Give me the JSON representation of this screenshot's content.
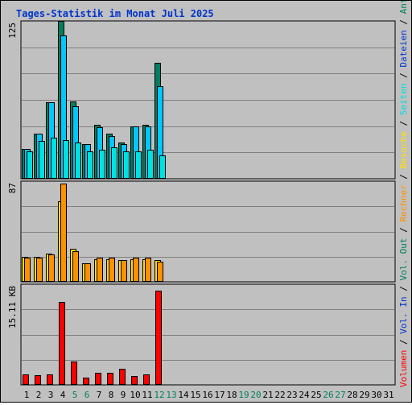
{
  "title": "Tages-Statistik im Monat Juli 2025",
  "colors": {
    "title": "#0033cc",
    "background": "#c0c0c0",
    "grid": "#808080",
    "anfragen": "#007f5f",
    "dateien": "#00c8ff",
    "seiten": "#00e0e0",
    "besuche": "#ffe000",
    "rechner": "#ff9000",
    "volumen": "#ff0000",
    "weekend": "#008060",
    "weekday": "#000000"
  },
  "legend": {
    "anfragen": "Anfragen",
    "dateien": "Dateien",
    "seiten": "Seiten",
    "besuche": "Besuche",
    "rechner": "Rechner",
    "vol_out": "Vol. Out",
    "vol_in": "Vol. In",
    "volumen": "Volumen",
    "sep": " / "
  },
  "chart_data": [
    {
      "type": "bar",
      "panel": "hits",
      "ylabel": "125",
      "ylim": [
        0,
        125
      ],
      "grid": true,
      "categories": [
        "1",
        "2",
        "3",
        "4",
        "5",
        "6",
        "7",
        "8",
        "9",
        "10",
        "11",
        "12",
        "13",
        "14",
        "15",
        "16",
        "17",
        "18",
        "19",
        "20",
        "21",
        "22",
        "23",
        "24",
        "25",
        "26",
        "27",
        "28",
        "29",
        "30",
        "31"
      ],
      "series": [
        {
          "name": "Anfragen",
          "color_key": "anfragen",
          "values": [
            24,
            36,
            61,
            126,
            62,
            28,
            43,
            36,
            29,
            42,
            43,
            93,
            0,
            0,
            0,
            0,
            0,
            0,
            0,
            0,
            0,
            0,
            0,
            0,
            0,
            0,
            0,
            0,
            0,
            0,
            0
          ]
        },
        {
          "name": "Dateien",
          "color_key": "dateien",
          "values": [
            24,
            36,
            61,
            115,
            58,
            28,
            41,
            34,
            28,
            42,
            42,
            74,
            0,
            0,
            0,
            0,
            0,
            0,
            0,
            0,
            0,
            0,
            0,
            0,
            0,
            0,
            0,
            0,
            0,
            0,
            0
          ]
        },
        {
          "name": "Seiten",
          "color_key": "seiten",
          "values": [
            22,
            30,
            33,
            31,
            29,
            22,
            23,
            25,
            22,
            22,
            23,
            19,
            0,
            0,
            0,
            0,
            0,
            0,
            0,
            0,
            0,
            0,
            0,
            0,
            0,
            0,
            0,
            0,
            0,
            0,
            0
          ]
        }
      ]
    },
    {
      "type": "bar",
      "panel": "visits",
      "ylabel": "87",
      "ylim": [
        0,
        87
      ],
      "grid": true,
      "categories": [
        "1",
        "2",
        "3",
        "4",
        "5",
        "6",
        "7",
        "8",
        "9",
        "10",
        "11",
        "12",
        "13",
        "14",
        "15",
        "16",
        "17",
        "18",
        "19",
        "20",
        "21",
        "22",
        "23",
        "24",
        "25",
        "26",
        "27",
        "28",
        "29",
        "30",
        "31"
      ],
      "series": [
        {
          "name": "Besuche",
          "color_key": "besuche",
          "values": [
            22,
            22,
            25,
            71,
            29,
            16,
            20,
            20,
            19,
            20,
            20,
            19,
            0,
            0,
            0,
            0,
            0,
            0,
            0,
            0,
            0,
            0,
            0,
            0,
            0,
            0,
            0,
            0,
            0,
            0,
            0
          ]
        },
        {
          "name": "Rechner",
          "color_key": "rechner",
          "values": [
            21,
            21,
            24,
            86,
            27,
            16,
            21,
            21,
            19,
            21,
            21,
            18,
            0,
            0,
            0,
            0,
            0,
            0,
            0,
            0,
            0,
            0,
            0,
            0,
            0,
            0,
            0,
            0,
            0,
            0,
            0
          ]
        }
      ]
    },
    {
      "type": "bar",
      "panel": "volume",
      "ylabel": "15.11 KB",
      "ylim": [
        0,
        15.11
      ],
      "grid": true,
      "categories": [
        "1",
        "2",
        "3",
        "4",
        "5",
        "6",
        "7",
        "8",
        "9",
        "10",
        "11",
        "12",
        "13",
        "14",
        "15",
        "16",
        "17",
        "18",
        "19",
        "20",
        "21",
        "22",
        "23",
        "24",
        "25",
        "26",
        "27",
        "28",
        "29",
        "30",
        "31"
      ],
      "series": [
        {
          "name": "Volumen",
          "color_key": "volumen",
          "values": [
            1.6,
            1.5,
            1.6,
            12.6,
            3.6,
            1.1,
            1.8,
            1.8,
            2.4,
            1.4,
            1.6,
            14.4,
            0,
            0,
            0,
            0,
            0,
            0,
            0,
            0,
            0,
            0,
            0,
            0,
            0,
            0,
            0,
            0,
            0,
            0,
            0
          ]
        }
      ]
    }
  ],
  "weekend_days": [
    "5",
    "6",
    "12",
    "13",
    "19",
    "20",
    "26",
    "27"
  ]
}
